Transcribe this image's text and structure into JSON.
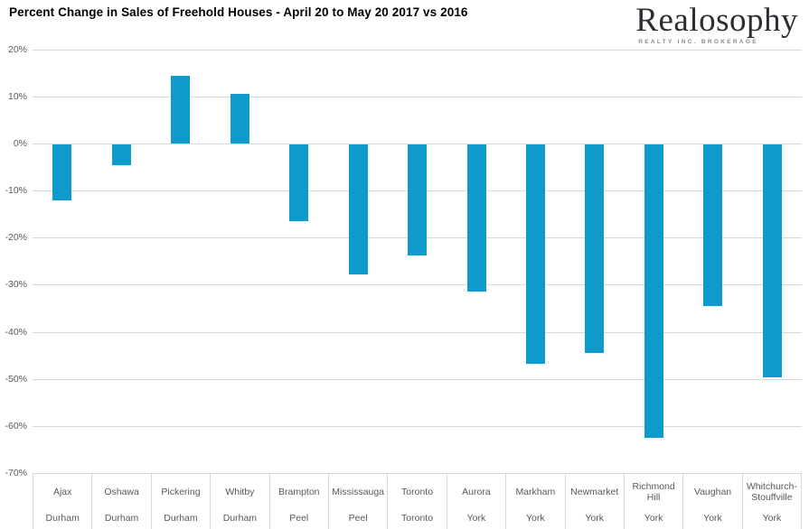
{
  "header": {
    "title": "Percent Change in Sales of Freehold Houses - April 20 to May 20 2017 vs 2016"
  },
  "logo": {
    "brand": "Realosophy",
    "tagline": "REALTY INC. BROKERAGE"
  },
  "chart_data": {
    "type": "bar",
    "title": "Percent Change in Sales of Freehold Houses - April 20 to May 20 2017 vs 2016",
    "categories": [
      "Ajax",
      "Oshawa",
      "Pickering",
      "Whitby",
      "Brampton",
      "Mississauga",
      "Toronto",
      "Aurora",
      "Markham",
      "Newmarket",
      "Richmond Hill",
      "Vaughan",
      "Whitchurch-Stouffville"
    ],
    "regions": [
      "Durham",
      "Durham",
      "Durham",
      "Durham",
      "Peel",
      "Peel",
      "Toronto",
      "York",
      "York",
      "York",
      "York",
      "York",
      "York"
    ],
    "values": [
      -11.8,
      -4.4,
      14.3,
      10.5,
      -16.3,
      -27.6,
      -23.5,
      -31.3,
      -46.5,
      -44.2,
      -62.4,
      -34.4,
      -49.4
    ],
    "unit": "%",
    "xlabel": "",
    "ylabel": "",
    "ylim": [
      -70,
      20
    ],
    "y_tick_labels": [
      "20%",
      "10%",
      "0%",
      "-10%",
      "-20%",
      "-30%",
      "-40%",
      "-50%",
      "-60%",
      "-70%"
    ],
    "grid": "horizontal",
    "legend": "none",
    "bar_color": "#0e9acb",
    "gridline_color": "#d9d9d9",
    "axis_text_color": "#595959"
  }
}
